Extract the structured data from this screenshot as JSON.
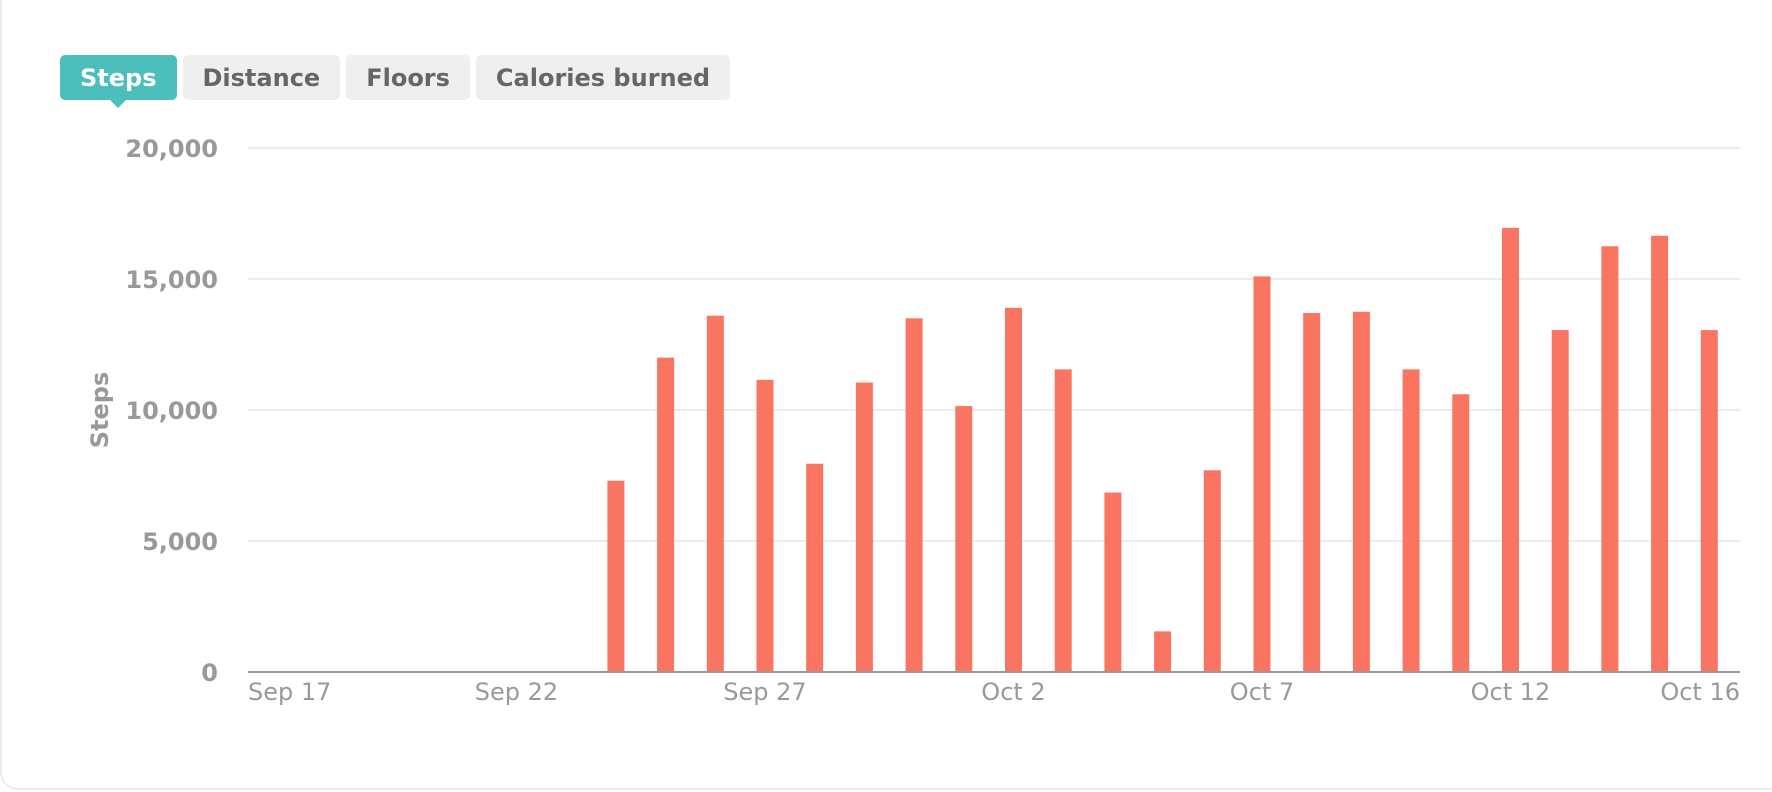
{
  "tabs": [
    {
      "label": "Steps",
      "active": true
    },
    {
      "label": "Distance",
      "active": false
    },
    {
      "label": "Floors",
      "active": false
    },
    {
      "label": "Calories burned",
      "active": false
    }
  ],
  "colors": {
    "bar": "#f97461",
    "active_tab": "#4cbfbc",
    "grid": "#ececec",
    "axis": "#999999"
  },
  "chart_data": {
    "type": "bar",
    "ylabel": "Steps",
    "ylim": [
      0,
      20000
    ],
    "yticks": [
      0,
      5000,
      10000,
      15000,
      20000
    ],
    "ytick_labels": [
      "0",
      "5,000",
      "10,000",
      "15,000",
      "20,000"
    ],
    "x_start": "Sep 17",
    "x_end": "Oct 16",
    "xtick_labels": [
      "Sep 17",
      "Sep 22",
      "Sep 27",
      "Oct 2",
      "Oct 7",
      "Oct 12",
      "Oct 16"
    ],
    "xtick_days": [
      0,
      5,
      10,
      15,
      20,
      25,
      29
    ],
    "grid": true,
    "categories": [
      "Sep 17",
      "Sep 18",
      "Sep 19",
      "Sep 20",
      "Sep 21",
      "Sep 22",
      "Sep 23",
      "Sep 24",
      "Sep 25",
      "Sep 26",
      "Sep 27",
      "Sep 28",
      "Sep 29",
      "Sep 30",
      "Oct 1",
      "Oct 2",
      "Oct 3",
      "Oct 4",
      "Oct 5",
      "Oct 6",
      "Oct 7",
      "Oct 8",
      "Oct 9",
      "Oct 10",
      "Oct 11",
      "Oct 12",
      "Oct 13",
      "Oct 14",
      "Oct 15",
      "Oct 16"
    ],
    "values": [
      0,
      0,
      0,
      0,
      0,
      0,
      0,
      7300,
      12000,
      13600,
      11150,
      7950,
      11050,
      13500,
      10150,
      13900,
      11550,
      6850,
      1550,
      7700,
      15100,
      13700,
      13750,
      11550,
      10600,
      16950,
      13050,
      16250,
      16650,
      13050
    ]
  }
}
